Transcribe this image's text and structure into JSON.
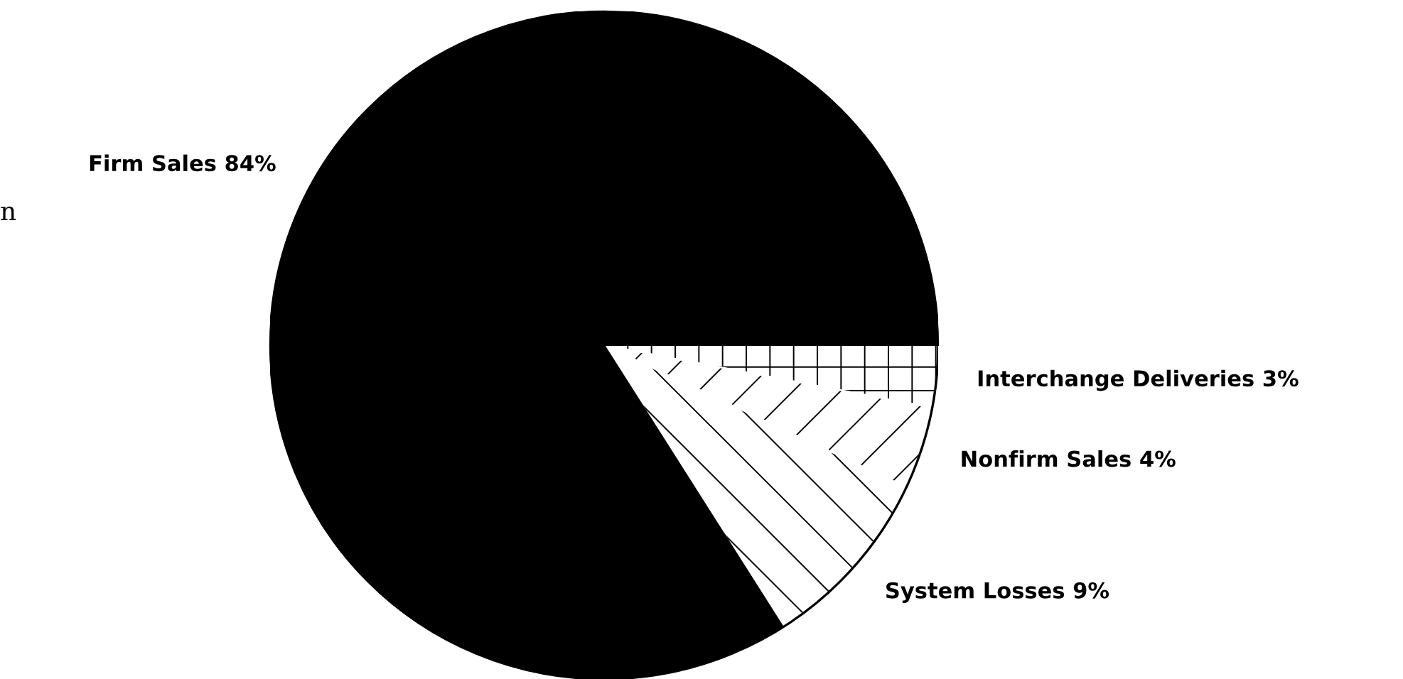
{
  "chart_data": {
    "type": "pie",
    "categories": [
      "Interchange Deliveries",
      "Nonfirm Sales",
      "System Losses",
      "Firm Sales"
    ],
    "values": [
      3,
      4,
      9,
      84
    ],
    "value_labels": [
      "3%",
      "4%",
      "9%",
      "84%"
    ],
    "colors": [
      "#ffffff",
      "#ffffff",
      "#ffffff",
      "#000000"
    ],
    "annotations": [
      "n"
    ]
  }
}
